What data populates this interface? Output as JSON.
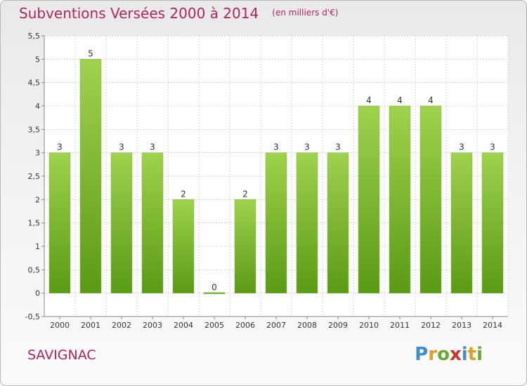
{
  "header": {
    "title": "Subventions Versées 2000 à 2014",
    "subtitle": "(en milliers d'€)"
  },
  "footer": {
    "name": "SAVIGNAC",
    "logo_text": "Proxiti"
  },
  "colors": {
    "accent": "#b0255c",
    "bar_top": "#9fd24d",
    "bar_bottom": "#5b9a16"
  },
  "chart_data": {
    "type": "bar",
    "title": "Subventions Versées 2000 à 2014",
    "subtitle": "(en milliers d'€)",
    "categories": [
      "2000",
      "2001",
      "2002",
      "2003",
      "2004",
      "2005",
      "2006",
      "2007",
      "2008",
      "2009",
      "2010",
      "2011",
      "2012",
      "2013",
      "2014"
    ],
    "values": [
      3,
      5,
      3,
      3,
      2,
      0,
      2,
      3,
      3,
      3,
      4,
      4,
      4,
      3,
      3
    ],
    "value_labels": [
      "3",
      "5",
      "3",
      "3",
      "2",
      "0",
      "2",
      "3",
      "3",
      "3",
      "4",
      "4",
      "4",
      "3",
      "3"
    ],
    "ylim": [
      -0.5,
      5.5
    ],
    "yticks": [
      -0.5,
      0,
      0.5,
      1,
      1.5,
      2,
      2.5,
      3,
      3.5,
      4,
      4.5,
      5,
      5.5
    ],
    "ytick_labels": [
      "-0,5",
      "0",
      "0,5",
      "1",
      "1,5",
      "2",
      "2,5",
      "3",
      "3,5",
      "4",
      "4,5",
      "5",
      "5,5"
    ],
    "xlabel": "",
    "ylabel": "",
    "grid": true,
    "legend": "none"
  }
}
